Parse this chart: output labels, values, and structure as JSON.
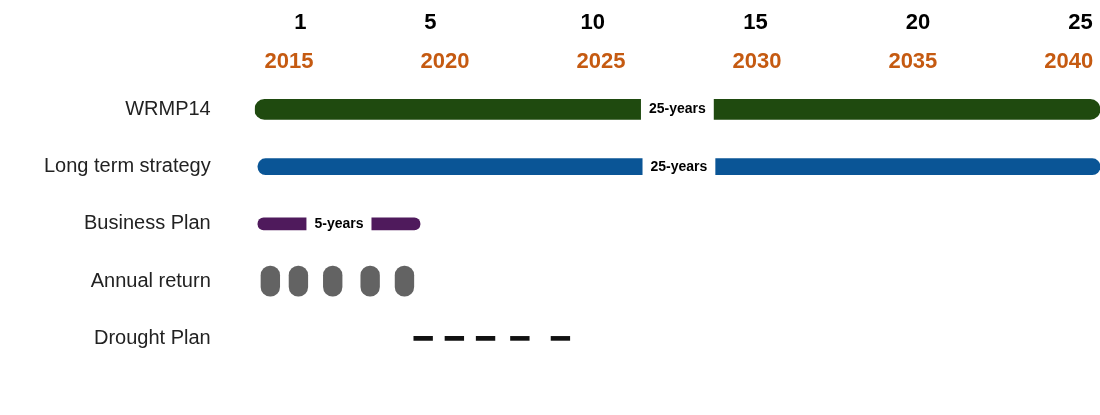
{
  "chart_data": {
    "type": "bar",
    "orientation": "horizontal",
    "categories": [
      "WRMP14",
      "Long term strategy",
      "Business Plan",
      "Annual return",
      "Drought Plan"
    ],
    "xlim": [
      2013.9,
      2041
    ],
    "xticks": [
      2015,
      2020,
      2025,
      2030,
      2035,
      2040
    ],
    "x2lim": [
      -0.4,
      25.6
    ],
    "x2ticks": [
      1,
      5,
      10,
      15,
      20,
      25
    ],
    "series": [
      {
        "color": "#1f4a0f",
        "values": [
          27.1,
          null,
          null,
          null,
          null
        ],
        "base": [
          2013.9,
          null,
          null,
          null,
          null
        ]
      },
      {
        "color": "#0a5596",
        "values": [
          null,
          27,
          null,
          null,
          null
        ],
        "base": [
          null,
          2014,
          null,
          null,
          null
        ]
      },
      {
        "color": "#4f1a5c",
        "values": [
          null,
          null,
          5.2,
          null,
          null
        ],
        "base": [
          null,
          null,
          2014,
          null,
          null
        ]
      },
      {
        "color": "#636363",
        "values": [
          null,
          null,
          null,
          0.6,
          null
        ],
        "base": [
          null,
          null,
          null,
          2014.1,
          null
        ]
      },
      {
        "color": "#636363",
        "values": [
          null,
          null,
          null,
          0.6,
          null
        ],
        "base": [
          null,
          null,
          null,
          2015,
          null
        ]
      },
      {
        "color": "#636363",
        "values": [
          null,
          null,
          null,
          0.6,
          null
        ],
        "base": [
          null,
          null,
          null,
          2016.1,
          null
        ]
      },
      {
        "color": "#636363",
        "values": [
          null,
          null,
          null,
          0.6,
          null
        ],
        "base": [
          null,
          null,
          null,
          2017.3,
          null
        ]
      },
      {
        "color": "#636363",
        "values": [
          null,
          null,
          null,
          0.6,
          null
        ],
        "base": [
          null,
          null,
          null,
          2018.4,
          null
        ]
      },
      {
        "color": "#111111",
        "values": [
          null,
          null,
          null,
          null,
          0.6
        ],
        "base": [
          null,
          null,
          null,
          null,
          2019
        ]
      },
      {
        "color": "#111111",
        "values": [
          null,
          null,
          null,
          null,
          0.6
        ],
        "base": [
          null,
          null,
          null,
          null,
          2020
        ]
      },
      {
        "color": "#111111",
        "values": [
          null,
          null,
          null,
          null,
          0.6
        ],
        "base": [
          null,
          null,
          null,
          null,
          2021
        ]
      },
      {
        "color": "#111111",
        "values": [
          null,
          null,
          null,
          null,
          0.6
        ],
        "base": [
          null,
          null,
          null,
          null,
          2022.1
        ]
      },
      {
        "color": "#111111",
        "values": [
          null,
          null,
          null,
          null,
          0.6
        ],
        "base": [
          null,
          null,
          null,
          null,
          2023.4
        ]
      }
    ],
    "annotations": [
      "25-years",
      "25-years",
      "5-years"
    ]
  }
}
